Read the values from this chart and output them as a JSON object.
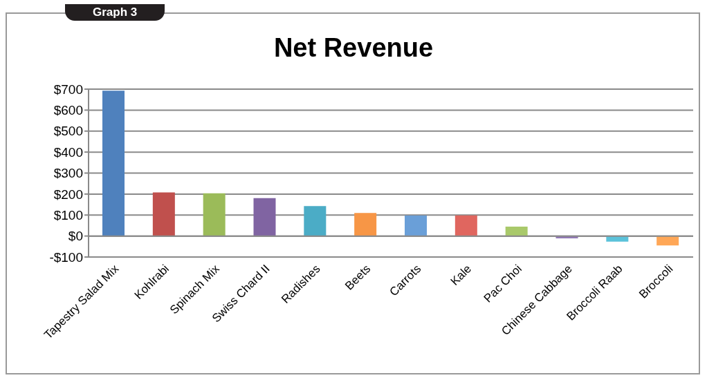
{
  "chart_data": {
    "type": "bar",
    "title": "Net Revenue",
    "annotations": [
      "Graph 3"
    ],
    "categories": [
      "Tapestry Salad Mix",
      "Kohlrabi",
      "Spinach Mix",
      "Swiss Chard II",
      "Radishes",
      "Beets",
      "Carrots",
      "Kale",
      "Pac Choi",
      "Chinese Cabbage",
      "Broccoli Raab",
      "Broccoli"
    ],
    "values": [
      693,
      208,
      204,
      181,
      143,
      110,
      98,
      98,
      45,
      -11,
      -27,
      -45
    ],
    "colors": [
      "#4f81bd",
      "#c0504d",
      "#9bbb59",
      "#8064a2",
      "#4bacc6",
      "#f79646",
      "#6a9fd8",
      "#e0665f",
      "#a9c96a",
      "#9179b5",
      "#5bc2da",
      "#ffa757"
    ],
    "ylim": [
      -100,
      700
    ],
    "yticks": [
      {
        "value": -100,
        "label": "-$100"
      },
      {
        "value": 0,
        "label": "$0"
      },
      {
        "value": 100,
        "label": "$100"
      },
      {
        "value": 200,
        "label": "$200"
      },
      {
        "value": 300,
        "label": "$300"
      },
      {
        "value": 400,
        "label": "$400"
      },
      {
        "value": 500,
        "label": "$500"
      },
      {
        "value": 600,
        "label": "$600"
      },
      {
        "value": 700,
        "label": "$700"
      }
    ],
    "grid": "y",
    "legend": false
  }
}
